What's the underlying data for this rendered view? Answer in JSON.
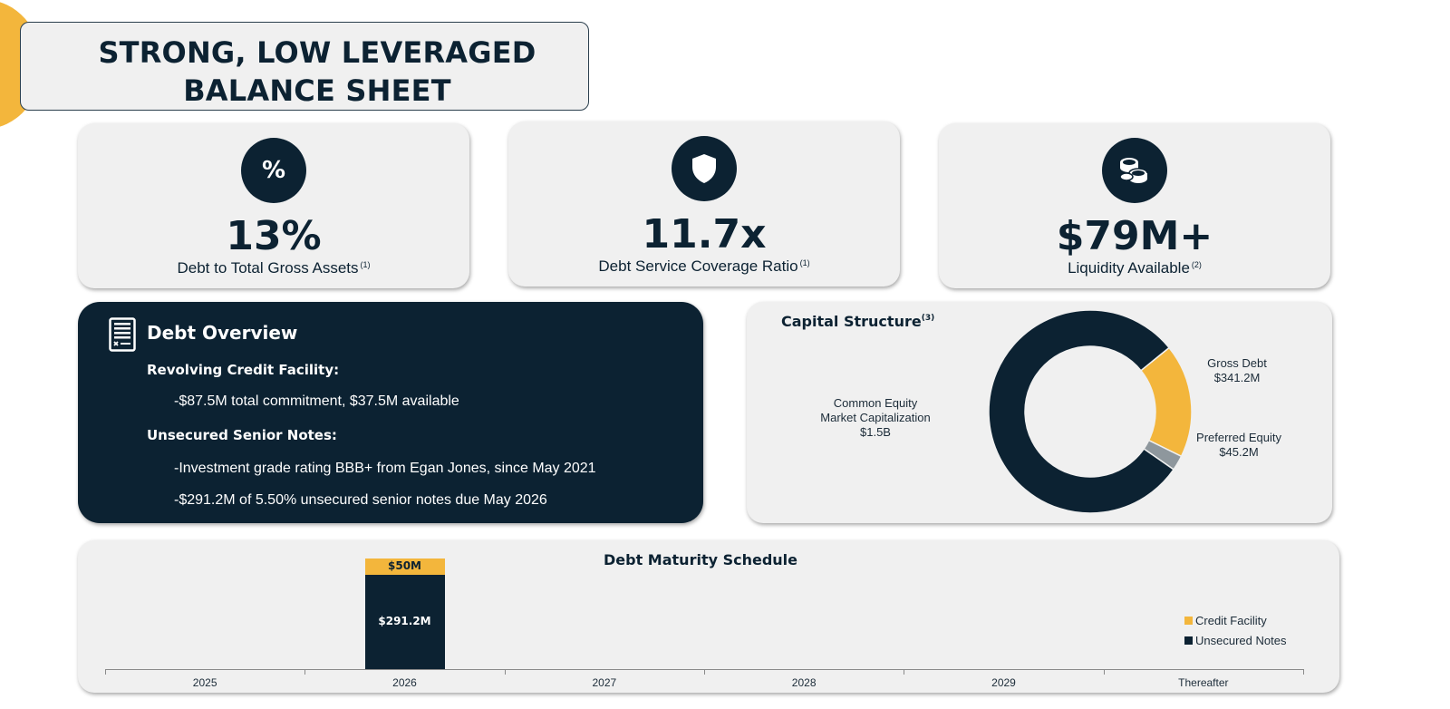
{
  "header": {
    "title_line1": "STRONG, LOW LEVERAGED",
    "title_line2": "BALANCE SHEET"
  },
  "kpis": [
    {
      "icon": "percent-icon",
      "icon_text": "%",
      "value": "13%",
      "label": "Debt to Total Gross Assets",
      "note": "(1)"
    },
    {
      "icon": "shield-icon",
      "value": "11.7x",
      "label": "Debt Service Coverage Ratio",
      "note": "(1)"
    },
    {
      "icon": "coins-icon",
      "value": "$79M+",
      "label": "Liquidity Available",
      "note": "(2)"
    }
  ],
  "debt_overview": {
    "title": "Debt Overview",
    "sections": [
      {
        "heading": "Revolving Credit Facility:",
        "lines": [
          "-$87.5M total commitment, $37.5M available"
        ]
      },
      {
        "heading": "Unsecured Senior Notes:",
        "lines": [
          "-Investment grade rating BBB+ from Egan Jones, since May 2021",
          "-$291.2M of 5.50% unsecured senior notes due May 2026"
        ]
      }
    ]
  },
  "capital_structure": {
    "title": "Capital Structure",
    "note": "(3)",
    "labels": {
      "common_equity": [
        "Common Equity",
        "Market Capitalization",
        "$1.5B"
      ],
      "gross_debt": [
        "Gross Debt",
        "$341.2M"
      ],
      "preferred_equity": [
        "Preferred Equity",
        "$45.2M"
      ]
    }
  },
  "debt_maturity": {
    "title": "Debt Maturity Schedule",
    "legend": {
      "credit_facility": "Credit Facility",
      "unsecured_notes": "Unsecured Notes"
    },
    "bar_labels": {
      "credit_facility_2026": "$50M",
      "unsecured_notes_2026": "$291.2M"
    }
  },
  "colors": {
    "navy": "#0c2232",
    "gold": "#f3b63c",
    "gray": "#8e979d",
    "card_bg": "#f0f0f0"
  },
  "chart_data": [
    {
      "type": "pie",
      "style": "donut",
      "labels": [
        "Common Equity Market Capitalization",
        "Gross Debt",
        "Preferred Equity"
      ],
      "values": [
        1500,
        341.2,
        45.2
      ],
      "unit": "$M",
      "colors": [
        "#0c2232",
        "#f3b63c",
        "#8e979d"
      ]
    },
    {
      "type": "bar",
      "stacked": true,
      "title": "Debt Maturity Schedule",
      "categories": [
        "2025",
        "2026",
        "2027",
        "2028",
        "2029",
        "Thereafter"
      ],
      "series": [
        {
          "name": "Unsecured Notes",
          "values": [
            0,
            291.2,
            0,
            0,
            0,
            0
          ],
          "color": "#0c2232"
        },
        {
          "name": "Credit Facility",
          "values": [
            0,
            50,
            0,
            0,
            0,
            0
          ],
          "color": "#f3b63c"
        }
      ],
      "legend_position": "right"
    }
  ]
}
